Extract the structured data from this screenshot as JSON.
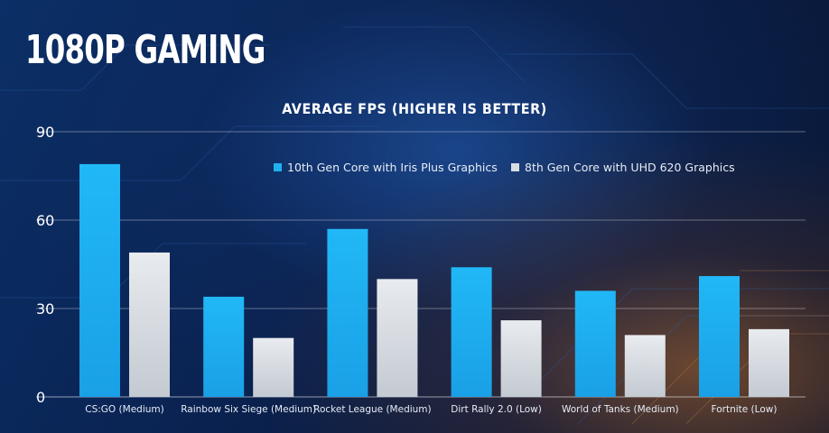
{
  "page": {
    "title": "1080P GAMING"
  },
  "chart_data": {
    "type": "bar",
    "title": "AVERAGE FPS (HIGHER IS BETTER)",
    "xlabel": "",
    "ylabel": "",
    "ylim": [
      0,
      90
    ],
    "yticks": [
      0,
      30,
      60,
      90
    ],
    "grid": true,
    "legend_position": "top",
    "categories": [
      "CS:GO (Medium)",
      "Rainbow Six Siege (Medium)",
      "Rocket League (Medium)",
      "Dirt Rally 2.0 (Low)",
      "World of Tanks (Medium)",
      "Fortnite (Low)"
    ],
    "series": [
      {
        "name": "10th Gen Core with Iris Plus Graphics",
        "color": "#1fb0f0",
        "values": [
          79,
          34,
          57,
          44,
          36,
          41
        ]
      },
      {
        "name": "8th Gen Core with UHD 620 Graphics",
        "color": "#d8dde3",
        "values": [
          49,
          20,
          40,
          26,
          21,
          23
        ]
      }
    ]
  }
}
